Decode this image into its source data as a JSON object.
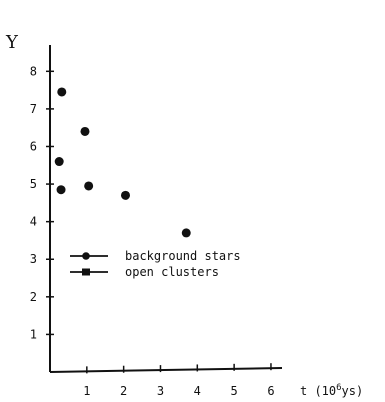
{
  "chart_data": {
    "type": "scatter",
    "title": "",
    "ylabel": "Υ",
    "xlabel_prefix": "t (10",
    "xlabel_sup": "6",
    "xlabel_suffix": "ys)",
    "xlim": [
      0,
      6.3
    ],
    "ylim": [
      0,
      8.7
    ],
    "xticks": [
      "1",
      "2",
      "3",
      "4",
      "5",
      "6"
    ],
    "xtick_values": [
      1,
      2,
      3,
      4,
      5,
      6
    ],
    "yticks": [
      "1",
      "2",
      "3",
      "4",
      "5",
      "6",
      "7",
      "8"
    ],
    "ytick_values": [
      1,
      2,
      3,
      4,
      5,
      6,
      7,
      8
    ],
    "grid": false,
    "legend_position": "left-middle",
    "legend": [
      {
        "label": "background stars"
      },
      {
        "label": "open clusters"
      }
    ],
    "points": [
      {
        "x": 0.32,
        "y": 7.45
      },
      {
        "x": 0.95,
        "y": 6.4
      },
      {
        "x": 0.25,
        "y": 5.6
      },
      {
        "x": 0.3,
        "y": 4.85
      },
      {
        "x": 1.05,
        "y": 4.95
      },
      {
        "x": 2.05,
        "y": 4.7
      },
      {
        "x": 3.7,
        "y": 3.7
      }
    ]
  }
}
